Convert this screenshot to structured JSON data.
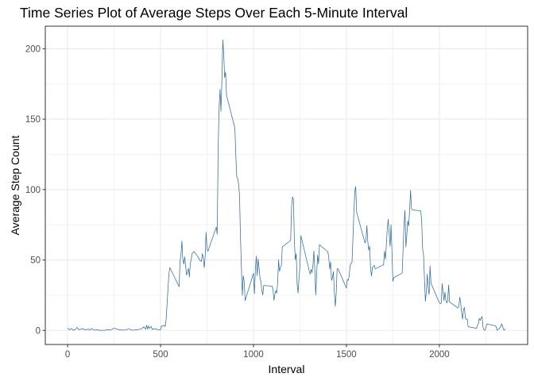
{
  "chart_data": {
    "type": "line",
    "title": "Time Series Plot of Average Steps Over Each 5-Minute Interval",
    "xlabel": "Interval",
    "ylabel": "Average Step Count",
    "xlim": [
      -120,
      2475
    ],
    "ylim": [
      -10,
      216
    ],
    "x_ticks": [
      0,
      500,
      1000,
      1500,
      2000
    ],
    "y_ticks": [
      0,
      50,
      100,
      150,
      200
    ],
    "x_tick_labels": [
      "0",
      "500",
      "1000",
      "1500",
      "2000"
    ],
    "y_tick_labels": [
      "0",
      "50",
      "100",
      "150",
      "200"
    ],
    "grid": true,
    "legend": "none",
    "colors": {
      "line": "#2E6DA4",
      "grid": "#EBEBEB",
      "panel_border": "#333333"
    },
    "series": [
      {
        "points": [
          [
            0,
            1.7
          ],
          [
            10,
            0.3
          ],
          [
            20,
            1.5
          ],
          [
            30,
            0.1
          ],
          [
            40,
            0.4
          ],
          [
            50,
            2.1
          ],
          [
            60,
            0.5
          ],
          [
            80,
            1.2
          ],
          [
            100,
            0.3
          ],
          [
            110,
            1.0
          ],
          [
            120,
            0.2
          ],
          [
            130,
            1.4
          ],
          [
            140,
            0.3
          ],
          [
            150,
            0.2
          ],
          [
            160,
            0.5
          ],
          [
            170,
            0.1
          ],
          [
            200,
            0.1
          ],
          [
            215,
            0.4
          ],
          [
            230,
            0.2
          ],
          [
            250,
            1.6
          ],
          [
            270,
            0.7
          ],
          [
            290,
            0.2
          ],
          [
            310,
            0.3
          ],
          [
            330,
            1.1
          ],
          [
            345,
            0.2
          ],
          [
            360,
            0.3
          ],
          [
            380,
            0.6
          ],
          [
            400,
            1.3
          ],
          [
            410,
            2.6
          ],
          [
            420,
            0.9
          ],
          [
            425,
            3.7
          ],
          [
            430,
            1.0
          ],
          [
            435,
            3.2
          ],
          [
            440,
            1.4
          ],
          [
            450,
            2.9
          ],
          [
            455,
            0.6
          ],
          [
            460,
            1.1
          ],
          [
            470,
            1.2
          ],
          [
            480,
            0.8
          ],
          [
            490,
            0.4
          ],
          [
            500,
            0.5
          ],
          [
            505,
            3.2
          ],
          [
            510,
            2.9
          ],
          [
            520,
            3.7
          ],
          [
            525,
            2.8
          ],
          [
            530,
            7.5
          ],
          [
            545,
            40.0
          ],
          [
            550,
            44.6
          ],
          [
            600,
            31.0
          ],
          [
            605,
            49.3
          ],
          [
            610,
            54.0
          ],
          [
            615,
            63.5
          ],
          [
            620,
            49.9
          ],
          [
            625,
            47.1
          ],
          [
            630,
            52.2
          ],
          [
            640,
            39.3
          ],
          [
            650,
            44.0
          ],
          [
            655,
            38.0
          ],
          [
            660,
            47.0
          ],
          [
            670,
            54.6
          ],
          [
            680,
            56.1
          ],
          [
            700,
            52.6
          ],
          [
            710,
            50.0
          ],
          [
            720,
            49.0
          ],
          [
            725,
            54.5
          ],
          [
            730,
            51.7
          ],
          [
            735,
            44.5
          ],
          [
            740,
            52.3
          ],
          [
            745,
            69.6
          ],
          [
            750,
            57.9
          ],
          [
            755,
            56.2
          ],
          [
            800,
            73.4
          ],
          [
            805,
            68.2
          ],
          [
            810,
            129.4
          ],
          [
            815,
            157.5
          ],
          [
            820,
            171.2
          ],
          [
            825,
            155.4
          ],
          [
            830,
            177.3
          ],
          [
            835,
            206.2
          ],
          [
            840,
            195.9
          ],
          [
            845,
            179.6
          ],
          [
            850,
            183.4
          ],
          [
            855,
            167.0
          ],
          [
            900,
            143.5
          ],
          [
            905,
            124.0
          ],
          [
            910,
            109.1
          ],
          [
            915,
            108.1
          ],
          [
            920,
            103.7
          ],
          [
            925,
            95.97
          ],
          [
            930,
            66.2
          ],
          [
            935,
            45.2
          ],
          [
            940,
            24.8
          ],
          [
            945,
            38.8
          ],
          [
            950,
            34.98
          ],
          [
            955,
            21.1
          ],
          [
            1000,
            40.6
          ],
          [
            1005,
            26.1
          ],
          [
            1010,
            42.4
          ],
          [
            1015,
            52.7
          ],
          [
            1020,
            38.9
          ],
          [
            1025,
            50.8
          ],
          [
            1030,
            44.3
          ],
          [
            1035,
            37.4
          ],
          [
            1040,
            34.7
          ],
          [
            1045,
            28.3
          ],
          [
            1050,
            25.1
          ],
          [
            1055,
            31.9
          ],
          [
            1100,
            31.4
          ],
          [
            1105,
            29.7
          ],
          [
            1110,
            21.3
          ],
          [
            1115,
            25.5
          ],
          [
            1120,
            28.4
          ],
          [
            1125,
            26.5
          ],
          [
            1130,
            33.4
          ],
          [
            1135,
            50.0
          ],
          [
            1140,
            42.0
          ],
          [
            1145,
            44.6
          ],
          [
            1150,
            46.0
          ],
          [
            1155,
            59.2
          ],
          [
            1200,
            63.9
          ],
          [
            1205,
            87.7
          ],
          [
            1210,
            94.8
          ],
          [
            1215,
            92.8
          ],
          [
            1220,
            63.4
          ],
          [
            1225,
            50.2
          ],
          [
            1230,
            54.5
          ],
          [
            1235,
            32.4
          ],
          [
            1240,
            26.5
          ],
          [
            1245,
            37.7
          ],
          [
            1250,
            45.1
          ],
          [
            1255,
            67.3
          ],
          [
            1300,
            42.3
          ],
          [
            1305,
            39.9
          ],
          [
            1310,
            43.3
          ],
          [
            1315,
            40.98
          ],
          [
            1320,
            46.2
          ],
          [
            1325,
            56.4
          ],
          [
            1330,
            42.8
          ],
          [
            1335,
            25.1
          ],
          [
            1340,
            39.96
          ],
          [
            1345,
            53.5
          ],
          [
            1350,
            47.3
          ],
          [
            1355,
            60.8
          ],
          [
            1400,
            55.8
          ],
          [
            1405,
            51.96
          ],
          [
            1410,
            43.6
          ],
          [
            1415,
            48.7
          ],
          [
            1420,
            35.5
          ],
          [
            1425,
            37.5
          ],
          [
            1430,
            41.8
          ],
          [
            1435,
            27.5
          ],
          [
            1440,
            17.1
          ],
          [
            1445,
            26.1
          ],
          [
            1450,
            43.6
          ],
          [
            1455,
            43.8
          ],
          [
            1500,
            30.0
          ],
          [
            1505,
            36.1
          ],
          [
            1510,
            35.5
          ],
          [
            1515,
            38.8
          ],
          [
            1520,
            45.96
          ],
          [
            1525,
            47.8
          ],
          [
            1530,
            48.1
          ],
          [
            1535,
            65.3
          ],
          [
            1540,
            82.9
          ],
          [
            1545,
            98.7
          ],
          [
            1550,
            102.1
          ],
          [
            1555,
            83.96
          ],
          [
            1600,
            62.1
          ],
          [
            1605,
            64.1
          ],
          [
            1610,
            74.5
          ],
          [
            1615,
            63.2
          ],
          [
            1620,
            56.9
          ],
          [
            1625,
            59.8
          ],
          [
            1630,
            43.9
          ],
          [
            1635,
            38.6
          ],
          [
            1640,
            44.7
          ],
          [
            1645,
            45.5
          ],
          [
            1650,
            46.2
          ],
          [
            1655,
            43.7
          ],
          [
            1700,
            46.6
          ],
          [
            1705,
            56.3
          ],
          [
            1710,
            50.7
          ],
          [
            1715,
            61.2
          ],
          [
            1720,
            72.7
          ],
          [
            1725,
            78.9
          ],
          [
            1730,
            68.9
          ],
          [
            1735,
            59.7
          ],
          [
            1740,
            75.1
          ],
          [
            1745,
            56.5
          ],
          [
            1750,
            34.8
          ],
          [
            1755,
            37.5
          ],
          [
            1800,
            40.7
          ],
          [
            1805,
            58.0
          ],
          [
            1810,
            74.7
          ],
          [
            1815,
            85.3
          ],
          [
            1820,
            59.3
          ],
          [
            1825,
            67.8
          ],
          [
            1830,
            77.7
          ],
          [
            1835,
            74.2
          ],
          [
            1840,
            85.3
          ],
          [
            1845,
            99.5
          ],
          [
            1850,
            86.6
          ],
          [
            1855,
            85.6
          ],
          [
            1900,
            84.9
          ],
          [
            1905,
            77.8
          ],
          [
            1910,
            58.0
          ],
          [
            1915,
            53.4
          ],
          [
            1920,
            36.3
          ],
          [
            1925,
            20.7
          ],
          [
            1930,
            27.4
          ],
          [
            1935,
            40.0
          ],
          [
            1940,
            30.2
          ],
          [
            1945,
            25.5
          ],
          [
            1950,
            45.7
          ],
          [
            1955,
            33.5
          ],
          [
            2000,
            19.6
          ],
          [
            2005,
            19.0
          ],
          [
            2010,
            19.3
          ],
          [
            2015,
            33.3
          ],
          [
            2020,
            26.8
          ],
          [
            2025,
            21.2
          ],
          [
            2030,
            27.3
          ],
          [
            2035,
            21.3
          ],
          [
            2040,
            19.5
          ],
          [
            2045,
            21.3
          ],
          [
            2050,
            32.3
          ],
          [
            2055,
            20.2
          ],
          [
            2100,
            15.9
          ],
          [
            2105,
            17.2
          ],
          [
            2110,
            23.5
          ],
          [
            2115,
            19.2
          ],
          [
            2120,
            12.5
          ],
          [
            2125,
            8.0
          ],
          [
            2130,
            14.7
          ],
          [
            2135,
            16.3
          ],
          [
            2140,
            8.7
          ],
          [
            2145,
            7.8
          ],
          [
            2150,
            8.1
          ],
          [
            2155,
            2.6
          ],
          [
            2200,
            1.5
          ],
          [
            2205,
            3.7
          ],
          [
            2210,
            4.8
          ],
          [
            2215,
            8.5
          ],
          [
            2220,
            7.1
          ],
          [
            2225,
            8.7
          ],
          [
            2230,
            9.8
          ],
          [
            2235,
            2.2
          ],
          [
            2240,
            0.3
          ],
          [
            2245,
            0.1
          ],
          [
            2250,
            1.6
          ],
          [
            2255,
            4.6
          ],
          [
            2300,
            3.3
          ],
          [
            2305,
            2.8
          ],
          [
            2310,
            0.0
          ],
          [
            2315,
            0.8
          ],
          [
            2320,
            1.0
          ],
          [
            2325,
            1.6
          ],
          [
            2330,
            2.6
          ],
          [
            2335,
            4.7
          ],
          [
            2340,
            3.3
          ],
          [
            2345,
            0.6
          ],
          [
            2350,
            0.2
          ],
          [
            2355,
            1.1
          ]
        ]
      }
    ]
  }
}
